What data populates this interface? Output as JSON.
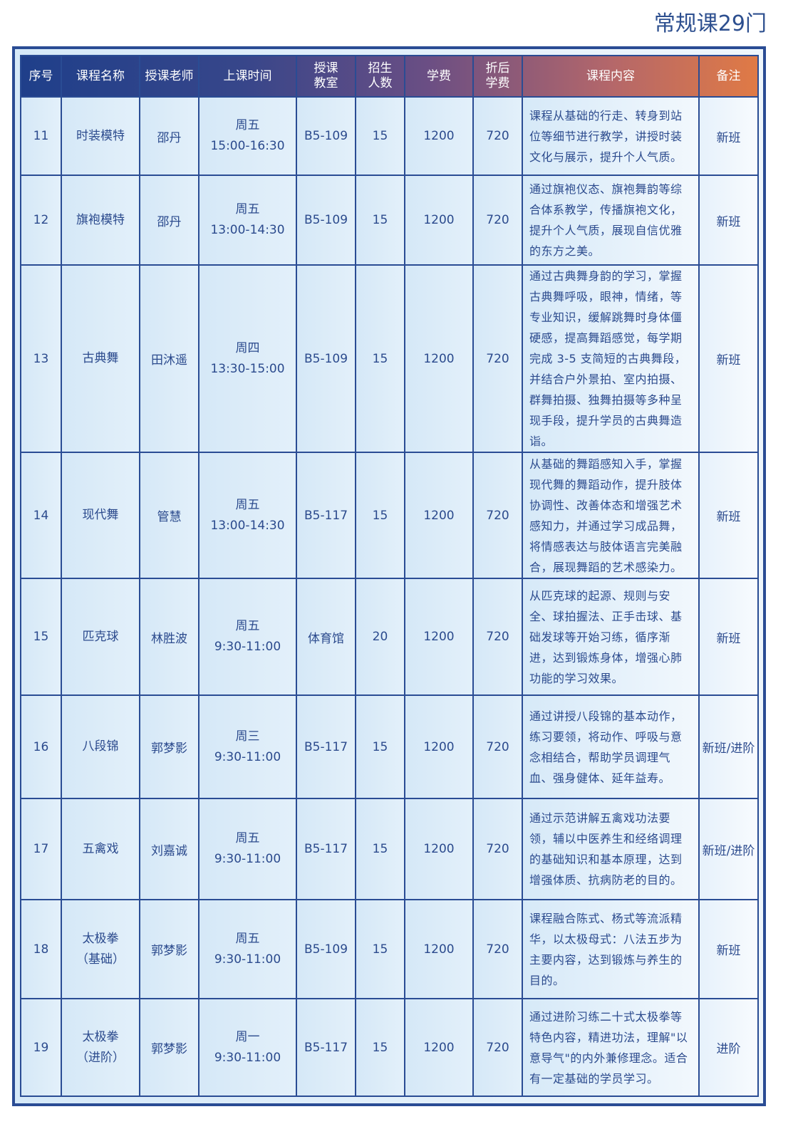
{
  "title": "常规课29门",
  "headers": {
    "index": "序号",
    "name": "课程名称",
    "teacher": [
      "授课",
      "老师"
    ],
    "time": "上课时间",
    "room": [
      "授课",
      "教室"
    ],
    "quota": [
      "招生",
      "人数"
    ],
    "fee": "学费",
    "discount": [
      "折后",
      "学费"
    ],
    "content": "课程内容",
    "note": "备注"
  },
  "rows": [
    {
      "index": "11",
      "name": "时装模特",
      "name_sub": "",
      "teacher": "邵丹",
      "day": "周五",
      "time": "15:00-16:30",
      "room": "B5-109",
      "quota": "15",
      "fee": "1200",
      "discount": "720",
      "content": "课程从基础的行走、转身到站位等细节进行教学，讲授时装文化与展示，提升个人气质。",
      "note": "新班"
    },
    {
      "index": "12",
      "name": "旗袍模特",
      "name_sub": "",
      "teacher": "邵丹",
      "day": "周五",
      "time": "13:00-14:30",
      "room": "B5-109",
      "quota": "15",
      "fee": "1200",
      "discount": "720",
      "content": "通过旗袍仪态、旗袍舞韵等综合体系教学，传播旗袍文化，提升个人气质，展现自信优雅的东方之美。",
      "note": "新班"
    },
    {
      "index": "13",
      "name": "古典舞",
      "name_sub": "",
      "teacher": "田沐遥",
      "day": "周四",
      "time": "13:30-15:00",
      "room": "B5-109",
      "quota": "15",
      "fee": "1200",
      "discount": "720",
      "content": "通过古典舞身韵的学习，掌握古典舞呼吸，眼神，情绪，等专业知识，缓解跳舞时身体僵硬感，提高舞蹈感觉，每学期完成 3-5 支简短的古典舞段，并结合户外景拍、室内拍摄、群舞拍摄、独舞拍摄等多种呈现手段，提升学员的古典舞造诣。",
      "note": "新班"
    },
    {
      "index": "14",
      "name": "现代舞",
      "name_sub": "",
      "teacher": "管慧",
      "day": "周五",
      "time": "13:00-14:30",
      "room": "B5-117",
      "quota": "15",
      "fee": "1200",
      "discount": "720",
      "content": "从基础的舞蹈感知入手，掌握现代舞的舞蹈动作，提升肢体协调性、改善体态和增强艺术感知力，并通过学习成品舞，将情感表达与肢体语言完美融合，展现舞蹈的艺术感染力。",
      "note": "新班"
    },
    {
      "index": "15",
      "name": "匹克球",
      "name_sub": "",
      "teacher": "林胜波",
      "day": "周五",
      "time": "9:30-11:00",
      "room": "体育馆",
      "quota": "20",
      "fee": "1200",
      "discount": "720",
      "content": "从匹克球的起源、规则与安全、球拍握法、正手击球、基础发球等开始习练，循序渐进，达到锻炼身体，增强心肺功能的学习效果。",
      "note": "新班"
    },
    {
      "index": "16",
      "name": "八段锦",
      "name_sub": "",
      "teacher": "郭梦影",
      "day": "周三",
      "time": "9:30-11:00",
      "room": "B5-117",
      "quota": "15",
      "fee": "1200",
      "discount": "720",
      "content": "通过讲授八段锦的基本动作，练习要领，将动作、呼吸与意念相结合，帮助学员调理气血、强身健体、延年益寿。",
      "note": "新班/进阶"
    },
    {
      "index": "17",
      "name": "五禽戏",
      "name_sub": "",
      "teacher": "刘嘉诚",
      "day": "周五",
      "time": "9:30-11:00",
      "room": "B5-117",
      "quota": "15",
      "fee": "1200",
      "discount": "720",
      "content": "通过示范讲解五禽戏功法要领，辅以中医养生和经络调理的基础知识和基本原理，达到增强体质、抗病防老的目的。",
      "note": "新班/进阶"
    },
    {
      "index": "18",
      "name": "太极拳",
      "name_sub": "（基础）",
      "teacher": "郭梦影",
      "day": "周五",
      "time": "9:30-11:00",
      "room": "B5-109",
      "quota": "15",
      "fee": "1200",
      "discount": "720",
      "content": "课程融合陈式、杨式等流派精华，以太极母式：八法五步为主要内容，达到锻炼与养生的目的。",
      "note": "新班"
    },
    {
      "index": "19",
      "name": "太极拳",
      "name_sub": "（进阶）",
      "teacher": "郭梦影",
      "day": "周一",
      "time": "9:30-11:00",
      "room": "B5-117",
      "quota": "15",
      "fee": "1200",
      "discount": "720",
      "content": "通过进阶习练二十式太极拳等特色内容，精进功法，理解\"以意导气\"的内外兼修理念。适合有一定基础的学员学习。",
      "note": "进阶"
    }
  ]
}
